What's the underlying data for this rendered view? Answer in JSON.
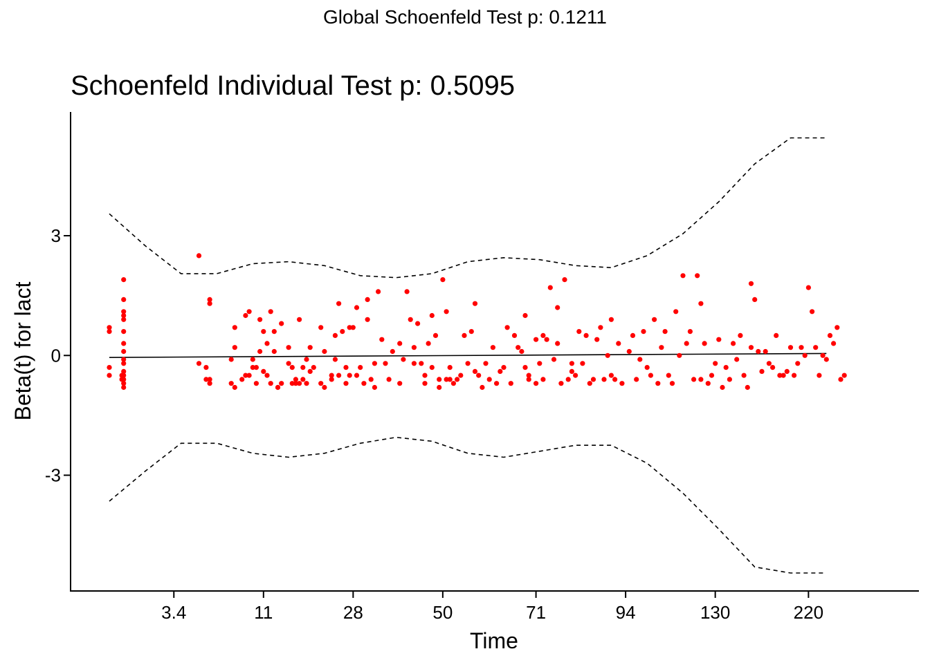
{
  "figure": {
    "suptitle": "Global Schoenfeld Test p: 0.1211"
  },
  "chart_data": {
    "type": "scatter",
    "title": "Schoenfeld Individual Test p: 0.5095",
    "xlabel": "Time",
    "ylabel": "Beta(t) for lact",
    "x_scale": "rank",
    "x_range": [
      0,
      215
    ],
    "ylim": [
      -5.9,
      6.1
    ],
    "x_ticks": [
      {
        "pos": 18,
        "label": "3.4"
      },
      {
        "pos": 43,
        "label": "11"
      },
      {
        "pos": 68,
        "label": "28"
      },
      {
        "pos": 93,
        "label": "50"
      },
      {
        "pos": 119,
        "label": "71"
      },
      {
        "pos": 144,
        "label": "94"
      },
      {
        "pos": 169,
        "label": "130"
      },
      {
        "pos": 195,
        "label": "220"
      }
    ],
    "y_ticks": [
      {
        "value": 3,
        "label": "3"
      },
      {
        "value": 0,
        "label": "0"
      },
      {
        "value": -3,
        "label": "-3"
      }
    ],
    "fit_line": {
      "style": "solid",
      "color": "#000000",
      "x": [
        0,
        200
      ],
      "y": [
        -0.05,
        0.05
      ]
    },
    "confidence_bands": {
      "style": "dashed",
      "color": "#000000",
      "x": [
        0,
        10,
        20,
        30,
        40,
        50,
        60,
        70,
        80,
        90,
        100,
        110,
        120,
        130,
        140,
        150,
        160,
        170,
        180,
        190,
        200
      ],
      "upper": [
        3.55,
        2.75,
        2.05,
        2.05,
        2.3,
        2.35,
        2.25,
        2.0,
        1.95,
        2.05,
        2.35,
        2.45,
        2.4,
        2.25,
        2.2,
        2.5,
        3.05,
        3.85,
        4.8,
        5.45,
        5.45
      ],
      "lower": [
        -3.65,
        -2.9,
        -2.2,
        -2.2,
        -2.45,
        -2.55,
        -2.45,
        -2.2,
        -2.05,
        -2.15,
        -2.45,
        -2.55,
        -2.4,
        -2.25,
        -2.25,
        -2.7,
        -3.45,
        -4.35,
        -5.3,
        -5.45,
        -5.45
      ]
    },
    "series": [
      {
        "name": "Scaled Schoenfeld residuals",
        "color": "#ff0000",
        "points": [
          [
            0,
            0.7
          ],
          [
            0,
            0.6
          ],
          [
            0,
            -0.3
          ],
          [
            0,
            -0.5
          ],
          [
            4,
            1.9
          ],
          [
            4,
            1.4
          ],
          [
            4,
            1.1
          ],
          [
            4,
            1.0
          ],
          [
            4,
            0.9
          ],
          [
            4,
            0.6
          ],
          [
            4,
            0.3
          ],
          [
            4,
            0.1
          ],
          [
            4,
            -0.1
          ],
          [
            4,
            -0.2
          ],
          [
            4,
            -0.4
          ],
          [
            4,
            -0.5
          ],
          [
            4,
            -0.6
          ],
          [
            4,
            -0.7
          ],
          [
            4,
            -0.8
          ],
          [
            3.5,
            -0.5
          ],
          [
            3.5,
            -0.6
          ],
          [
            25,
            2.5
          ],
          [
            25,
            -0.2
          ],
          [
            27,
            -0.3
          ],
          [
            27,
            -0.6
          ],
          [
            28,
            1.4
          ],
          [
            28,
            1.3
          ],
          [
            28,
            -0.6
          ],
          [
            28,
            -0.7
          ],
          [
            34,
            -0.1
          ],
          [
            34,
            -0.7
          ],
          [
            35,
            0.7
          ],
          [
            35,
            0.2
          ],
          [
            35,
            -0.8
          ],
          [
            37,
            -0.6
          ],
          [
            38,
            1.0
          ],
          [
            38,
            -0.5
          ],
          [
            39,
            1.1
          ],
          [
            39,
            -0.5
          ],
          [
            40,
            -0.1
          ],
          [
            40,
            -0.3
          ],
          [
            41,
            -0.3
          ],
          [
            41,
            -0.7
          ],
          [
            42,
            0.9
          ],
          [
            42,
            0.1
          ],
          [
            43,
            0.6
          ],
          [
            43,
            -0.4
          ],
          [
            44,
            0.3
          ],
          [
            44,
            -0.5
          ],
          [
            45,
            1.1
          ],
          [
            45,
            -0.7
          ],
          [
            46,
            0.6
          ],
          [
            46,
            0.1
          ],
          [
            47,
            -0.8
          ],
          [
            47,
            -0.8
          ],
          [
            48,
            0.8
          ],
          [
            48,
            -0.7
          ],
          [
            50,
            0.2
          ],
          [
            50,
            -0.2
          ],
          [
            51,
            -0.3
          ],
          [
            51,
            -0.7
          ],
          [
            52,
            -0.6
          ],
          [
            52,
            -0.7
          ],
          [
            53,
            0.9
          ],
          [
            53,
            -0.7
          ],
          [
            54,
            -0.3
          ],
          [
            54,
            -0.6
          ],
          [
            55,
            -0.1
          ],
          [
            55,
            -0.7
          ],
          [
            56,
            0.2
          ],
          [
            56,
            -0.4
          ],
          [
            57,
            -0.3
          ],
          [
            59,
            0.7
          ],
          [
            59,
            -0.7
          ],
          [
            60,
            0.1
          ],
          [
            60,
            -0.8
          ],
          [
            62,
            -0.5
          ],
          [
            62,
            -0.6
          ],
          [
            63,
            0.5
          ],
          [
            63,
            -0.1
          ],
          [
            64,
            1.3
          ],
          [
            64,
            -0.5
          ],
          [
            65,
            0.6
          ],
          [
            66,
            -0.3
          ],
          [
            66,
            -0.7
          ],
          [
            67,
            0.7
          ],
          [
            67,
            -0.5
          ],
          [
            68,
            0.7
          ],
          [
            69,
            1.2
          ],
          [
            69,
            -0.5
          ],
          [
            70,
            -0.3
          ],
          [
            71,
            -0.7
          ],
          [
            72,
            1.4
          ],
          [
            72,
            0.9
          ],
          [
            73,
            -0.6
          ],
          [
            74,
            -0.8
          ],
          [
            74,
            -0.2
          ],
          [
            75,
            1.6
          ],
          [
            76,
            0.4
          ],
          [
            77,
            -0.2
          ],
          [
            78,
            -0.6
          ],
          [
            79,
            0.1
          ],
          [
            81,
            0.3
          ],
          [
            81,
            -0.7
          ],
          [
            82,
            -0.1
          ],
          [
            83,
            1.6
          ],
          [
            84,
            0.9
          ],
          [
            85,
            0.2
          ],
          [
            85,
            -0.2
          ],
          [
            86,
            0.8
          ],
          [
            87,
            -0.2
          ],
          [
            88,
            -0.5
          ],
          [
            88,
            -0.7
          ],
          [
            89,
            0.3
          ],
          [
            90,
            1.0
          ],
          [
            90,
            -0.3
          ],
          [
            91,
            0.5
          ],
          [
            92,
            -0.8
          ],
          [
            92,
            -0.6
          ],
          [
            93,
            1.9
          ],
          [
            94,
            1.1
          ],
          [
            94,
            -0.6
          ],
          [
            95,
            -0.3
          ],
          [
            95,
            -0.6
          ],
          [
            96,
            -0.7
          ],
          [
            97,
            -0.6
          ],
          [
            98,
            -0.5
          ],
          [
            99,
            0.5
          ],
          [
            100,
            -0.2
          ],
          [
            101,
            0.6
          ],
          [
            102,
            1.3
          ],
          [
            102,
            -0.4
          ],
          [
            103,
            -0.5
          ],
          [
            104,
            -0.8
          ],
          [
            105,
            -0.2
          ],
          [
            106,
            -0.6
          ],
          [
            107,
            0.2
          ],
          [
            108,
            -0.7
          ],
          [
            109,
            -0.4
          ],
          [
            110,
            -0.3
          ],
          [
            111,
            0.7
          ],
          [
            112,
            -0.7
          ],
          [
            113,
            0.5
          ],
          [
            114,
            0.2
          ],
          [
            115,
            0.1
          ],
          [
            116,
            1.0
          ],
          [
            116,
            -0.3
          ],
          [
            117,
            -0.5
          ],
          [
            117,
            -0.6
          ],
          [
            119,
            0.4
          ],
          [
            119,
            -0.7
          ],
          [
            120,
            -0.2
          ],
          [
            121,
            0.5
          ],
          [
            121,
            -0.6
          ],
          [
            122,
            0.4
          ],
          [
            123,
            1.7
          ],
          [
            124,
            -0.1
          ],
          [
            125,
            1.2
          ],
          [
            125,
            0.3
          ],
          [
            126,
            -0.7
          ],
          [
            127,
            1.9
          ],
          [
            128,
            -0.6
          ],
          [
            129,
            -0.2
          ],
          [
            129,
            -0.4
          ],
          [
            130,
            -0.5
          ],
          [
            131,
            0.6
          ],
          [
            132,
            -0.2
          ],
          [
            133,
            0.5
          ],
          [
            134,
            -0.7
          ],
          [
            135,
            -0.6
          ],
          [
            136,
            0.4
          ],
          [
            137,
            0.7
          ],
          [
            138,
            -0.6
          ],
          [
            139,
            0.0
          ],
          [
            140,
            0.9
          ],
          [
            140,
            -0.5
          ],
          [
            141,
            -0.6
          ],
          [
            142,
            0.3
          ],
          [
            143,
            -0.7
          ],
          [
            145,
            0.1
          ],
          [
            146,
            0.5
          ],
          [
            147,
            -0.6
          ],
          [
            148,
            -0.1
          ],
          [
            149,
            0.6
          ],
          [
            150,
            -0.3
          ],
          [
            151,
            -0.5
          ],
          [
            152,
            0.9
          ],
          [
            153,
            -0.7
          ],
          [
            154,
            0.2
          ],
          [
            155,
            0.6
          ],
          [
            156,
            -0.5
          ],
          [
            157,
            -0.7
          ],
          [
            158,
            1.1
          ],
          [
            159,
            0.0
          ],
          [
            160,
            2.0
          ],
          [
            161,
            0.3
          ],
          [
            162,
            0.6
          ],
          [
            163,
            -0.6
          ],
          [
            164,
            2.0
          ],
          [
            165,
            1.3
          ],
          [
            165,
            -0.6
          ],
          [
            166,
            0.3
          ],
          [
            167,
            -0.7
          ],
          [
            168,
            -0.5
          ],
          [
            169,
            -0.2
          ],
          [
            170,
            0.4
          ],
          [
            171,
            -0.8
          ],
          [
            172,
            -0.3
          ],
          [
            173,
            -0.6
          ],
          [
            174,
            0.3
          ],
          [
            175,
            -0.1
          ],
          [
            176,
            0.5
          ],
          [
            177,
            -0.5
          ],
          [
            178,
            -0.8
          ],
          [
            179,
            1.8
          ],
          [
            179,
            0.2
          ],
          [
            180,
            1.4
          ],
          [
            181,
            0.1
          ],
          [
            182,
            -0.4
          ],
          [
            183,
            0.1
          ],
          [
            184,
            -0.2
          ],
          [
            185,
            -0.3
          ],
          [
            186,
            0.5
          ],
          [
            187,
            -0.5
          ],
          [
            188,
            -0.5
          ],
          [
            189,
            -0.4
          ],
          [
            190,
            0.2
          ],
          [
            191,
            -0.5
          ],
          [
            192,
            -0.2
          ],
          [
            193,
            0.2
          ],
          [
            194,
            0.0
          ],
          [
            195,
            1.7
          ],
          [
            196,
            1.1
          ],
          [
            197,
            0.2
          ],
          [
            198,
            -0.5
          ],
          [
            199,
            0.0
          ],
          [
            200,
            -0.1
          ],
          [
            201,
            0.5
          ],
          [
            202,
            0.3
          ],
          [
            203,
            0.7
          ],
          [
            204,
            -0.6
          ],
          [
            205,
            -0.5
          ]
        ]
      }
    ]
  }
}
